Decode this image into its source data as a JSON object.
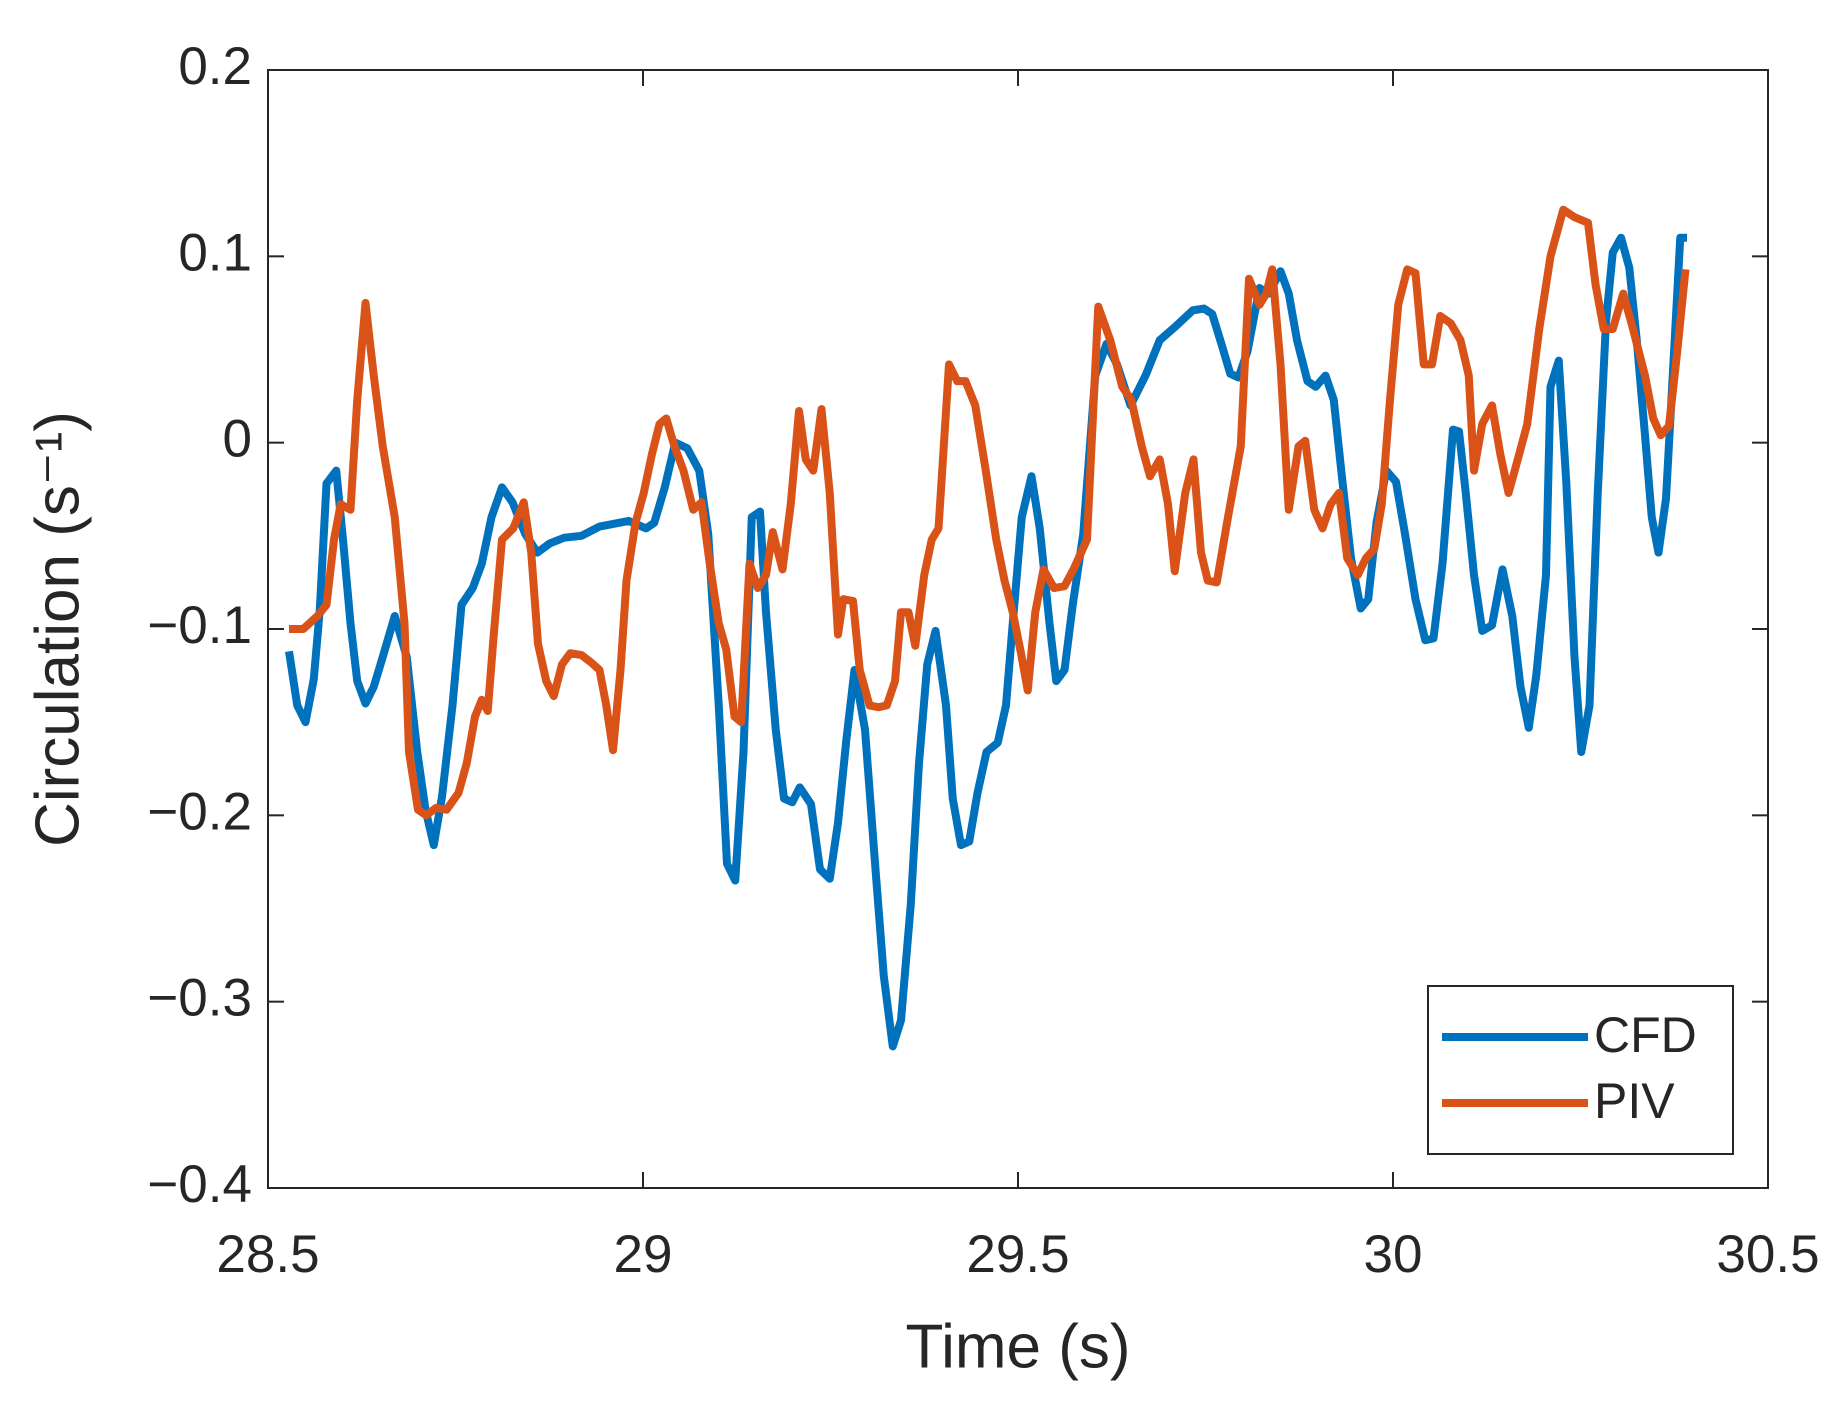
{
  "chart_data": {
    "type": "line",
    "xlabel": "Time (s)",
    "ylabel": "Circulation (s⁻¹)",
    "xlim": [
      28.5,
      30.5
    ],
    "xticks": [
      28.5,
      29,
      29.5,
      30,
      30.5
    ],
    "ylim": [
      -0.4,
      0.2
    ],
    "yticks": [
      {
        "value": -0.4,
        "label": "−0.4"
      },
      {
        "value": -0.3,
        "label": "−0.3"
      },
      {
        "value": -0.2,
        "label": "−0.2"
      },
      {
        "value": -0.1,
        "label": "−0.1"
      },
      0,
      0.1,
      0.2
    ],
    "legend": "southeast",
    "grid": false,
    "series": [
      {
        "name": "CFD",
        "color": "#0072BD",
        "x": [
          28.528,
          28.539,
          28.55,
          28.561,
          28.569,
          28.578,
          28.591,
          28.6,
          28.61,
          28.619,
          28.63,
          28.641,
          28.653,
          28.669,
          28.685,
          28.699,
          28.71,
          28.721,
          28.732,
          28.746,
          28.758,
          28.773,
          28.785,
          28.798,
          28.812,
          28.826,
          28.843,
          28.859,
          28.876,
          28.895,
          28.918,
          28.942,
          28.981,
          29.004,
          29.015,
          29.029,
          29.043,
          29.059,
          29.075,
          29.087,
          29.101,
          29.112,
          29.123,
          29.134,
          29.145,
          29.156,
          29.164,
          29.177,
          29.188,
          29.199,
          29.209,
          29.224,
          29.236,
          29.249,
          29.26,
          29.271,
          29.282,
          29.296,
          29.31,
          29.321,
          29.333,
          29.344,
          29.357,
          29.368,
          29.379,
          29.39,
          29.404,
          29.413,
          29.424,
          29.435,
          29.446,
          29.458,
          29.473,
          29.484,
          29.493,
          29.505,
          29.518,
          29.529,
          29.542,
          29.551,
          29.562,
          29.573,
          29.587,
          29.603,
          29.618,
          29.632,
          29.65,
          29.67,
          29.689,
          29.709,
          29.733,
          29.748,
          29.759,
          29.772,
          29.783,
          29.794,
          29.806,
          29.822,
          29.834,
          29.85,
          29.861,
          29.872,
          29.886,
          29.897,
          29.91,
          29.921,
          29.931,
          29.944,
          29.957,
          29.967,
          29.978,
          29.991,
          30.004,
          30.016,
          30.03,
          30.043,
          30.054,
          30.066,
          30.08,
          30.088,
          30.097,
          30.108,
          30.119,
          30.132,
          30.146,
          30.159,
          30.17,
          30.181,
          30.191,
          30.204,
          30.21,
          30.221,
          30.231,
          30.242,
          30.251,
          30.262,
          30.273,
          30.284,
          30.293,
          30.304,
          30.315,
          30.325,
          30.336,
          30.345,
          30.354,
          30.364,
          30.376,
          30.383,
          30.392
        ],
        "values": [
          -0.112,
          -0.141,
          -0.15,
          -0.127,
          -0.09,
          -0.022,
          -0.015,
          -0.052,
          -0.097,
          -0.128,
          -0.14,
          -0.131,
          -0.115,
          -0.093,
          -0.115,
          -0.166,
          -0.197,
          -0.216,
          -0.19,
          -0.141,
          -0.087,
          -0.078,
          -0.065,
          -0.04,
          -0.024,
          -0.032,
          -0.049,
          -0.059,
          -0.054,
          -0.051,
          -0.05,
          -0.045,
          -0.042,
          -0.046,
          -0.043,
          -0.024,
          0.0,
          -0.003,
          -0.015,
          -0.049,
          -0.141,
          -0.226,
          -0.235,
          -0.166,
          -0.04,
          -0.037,
          -0.091,
          -0.154,
          -0.191,
          -0.193,
          -0.185,
          -0.194,
          -0.229,
          -0.234,
          -0.204,
          -0.16,
          -0.122,
          -0.154,
          -0.229,
          -0.286,
          -0.324,
          -0.31,
          -0.248,
          -0.172,
          -0.119,
          -0.101,
          -0.141,
          -0.191,
          -0.216,
          -0.214,
          -0.188,
          -0.166,
          -0.161,
          -0.141,
          -0.097,
          -0.04,
          -0.018,
          -0.046,
          -0.097,
          -0.128,
          -0.122,
          -0.087,
          -0.049,
          0.036,
          0.053,
          0.042,
          0.02,
          0.036,
          0.055,
          0.062,
          0.071,
          0.072,
          0.069,
          0.052,
          0.037,
          0.035,
          0.049,
          0.083,
          0.08,
          0.092,
          0.08,
          0.055,
          0.033,
          0.03,
          0.036,
          0.023,
          -0.015,
          -0.062,
          -0.089,
          -0.084,
          -0.043,
          -0.015,
          -0.021,
          -0.049,
          -0.084,
          -0.106,
          -0.105,
          -0.065,
          0.007,
          0.006,
          -0.027,
          -0.071,
          -0.101,
          -0.098,
          -0.068,
          -0.093,
          -0.131,
          -0.153,
          -0.125,
          -0.071,
          0.03,
          0.044,
          -0.021,
          -0.115,
          -0.166,
          -0.141,
          -0.027,
          0.065,
          0.102,
          0.11,
          0.094,
          0.055,
          0.004,
          -0.04,
          -0.059,
          -0.03,
          0.058,
          0.11,
          0.11
        ]
      },
      {
        "name": "PIV",
        "color": "#D95319",
        "x": [
          28.528,
          28.547,
          28.566,
          28.578,
          28.588,
          28.597,
          28.61,
          28.619,
          28.63,
          28.641,
          28.653,
          28.669,
          28.682,
          28.688,
          28.7,
          28.711,
          28.724,
          28.738,
          28.754,
          28.765,
          28.776,
          28.785,
          28.793,
          28.801,
          28.812,
          28.827,
          28.841,
          28.851,
          28.86,
          28.871,
          28.881,
          28.892,
          28.903,
          28.918,
          28.931,
          28.942,
          28.951,
          28.96,
          28.97,
          28.978,
          28.99,
          29.001,
          29.012,
          29.022,
          29.031,
          29.042,
          29.054,
          29.067,
          29.078,
          29.089,
          29.101,
          29.111,
          29.122,
          29.131,
          29.142,
          29.153,
          29.164,
          29.173,
          29.186,
          29.197,
          29.208,
          29.217,
          29.227,
          29.238,
          29.249,
          29.26,
          29.267,
          29.28,
          29.289,
          29.302,
          29.314,
          29.325,
          29.336,
          29.344,
          29.354,
          29.363,
          29.375,
          29.385,
          29.394,
          29.408,
          29.419,
          29.43,
          29.443,
          29.457,
          29.471,
          29.482,
          29.493,
          29.504,
          29.513,
          29.523,
          29.534,
          29.548,
          29.562,
          29.574,
          29.592,
          29.607,
          29.623,
          29.639,
          29.651,
          29.665,
          29.676,
          29.689,
          29.7,
          29.709,
          29.723,
          29.734,
          29.744,
          29.753,
          29.765,
          29.78,
          29.797,
          29.808,
          29.822,
          29.831,
          29.839,
          29.85,
          29.861,
          29.874,
          29.883,
          29.895,
          29.906,
          29.917,
          29.928,
          29.939,
          29.953,
          29.964,
          29.975,
          29.985,
          29.996,
          30.007,
          30.019,
          30.03,
          30.041,
          30.052,
          30.063,
          30.077,
          30.09,
          30.101,
          30.108,
          30.119,
          30.132,
          30.143,
          30.154,
          30.165,
          30.179,
          30.195,
          30.21,
          30.227,
          30.242,
          30.26,
          30.27,
          30.281,
          30.293,
          30.307,
          30.32,
          30.336,
          30.347,
          30.357,
          30.368,
          30.379,
          30.39
        ],
        "values": [
          -0.1,
          -0.1,
          -0.093,
          -0.087,
          -0.052,
          -0.033,
          -0.036,
          0.023,
          0.075,
          0.036,
          -0.002,
          -0.04,
          -0.097,
          -0.166,
          -0.197,
          -0.2,
          -0.196,
          -0.197,
          -0.188,
          -0.172,
          -0.147,
          -0.138,
          -0.144,
          -0.103,
          -0.052,
          -0.046,
          -0.032,
          -0.059,
          -0.108,
          -0.128,
          -0.136,
          -0.119,
          -0.113,
          -0.114,
          -0.118,
          -0.122,
          -0.141,
          -0.165,
          -0.122,
          -0.074,
          -0.043,
          -0.027,
          -0.006,
          0.01,
          0.013,
          -0.002,
          -0.015,
          -0.036,
          -0.032,
          -0.065,
          -0.097,
          -0.111,
          -0.147,
          -0.15,
          -0.065,
          -0.078,
          -0.071,
          -0.048,
          -0.068,
          -0.033,
          0.017,
          -0.009,
          -0.015,
          0.018,
          -0.027,
          -0.103,
          -0.084,
          -0.085,
          -0.122,
          -0.141,
          -0.142,
          -0.141,
          -0.128,
          -0.091,
          -0.091,
          -0.109,
          -0.071,
          -0.052,
          -0.046,
          0.042,
          0.033,
          0.033,
          0.02,
          -0.015,
          -0.052,
          -0.074,
          -0.091,
          -0.113,
          -0.133,
          -0.091,
          -0.068,
          -0.078,
          -0.077,
          -0.068,
          -0.052,
          0.073,
          0.055,
          0.03,
          0.023,
          -0.002,
          -0.018,
          -0.009,
          -0.033,
          -0.069,
          -0.027,
          -0.009,
          -0.059,
          -0.074,
          -0.075,
          -0.04,
          -0.002,
          0.088,
          0.074,
          0.08,
          0.093,
          0.042,
          -0.036,
          -0.002,
          0.001,
          -0.036,
          -0.046,
          -0.033,
          -0.027,
          -0.062,
          -0.071,
          -0.062,
          -0.057,
          -0.033,
          0.023,
          0.074,
          0.093,
          0.091,
          0.042,
          0.042,
          0.068,
          0.064,
          0.055,
          0.036,
          -0.015,
          0.01,
          0.02,
          -0.006,
          -0.027,
          -0.011,
          0.01,
          0.061,
          0.1,
          0.125,
          0.121,
          0.118,
          0.085,
          0.061,
          0.061,
          0.08,
          0.061,
          0.036,
          0.013,
          0.004,
          0.009,
          0.049,
          0.093
        ]
      }
    ]
  }
}
